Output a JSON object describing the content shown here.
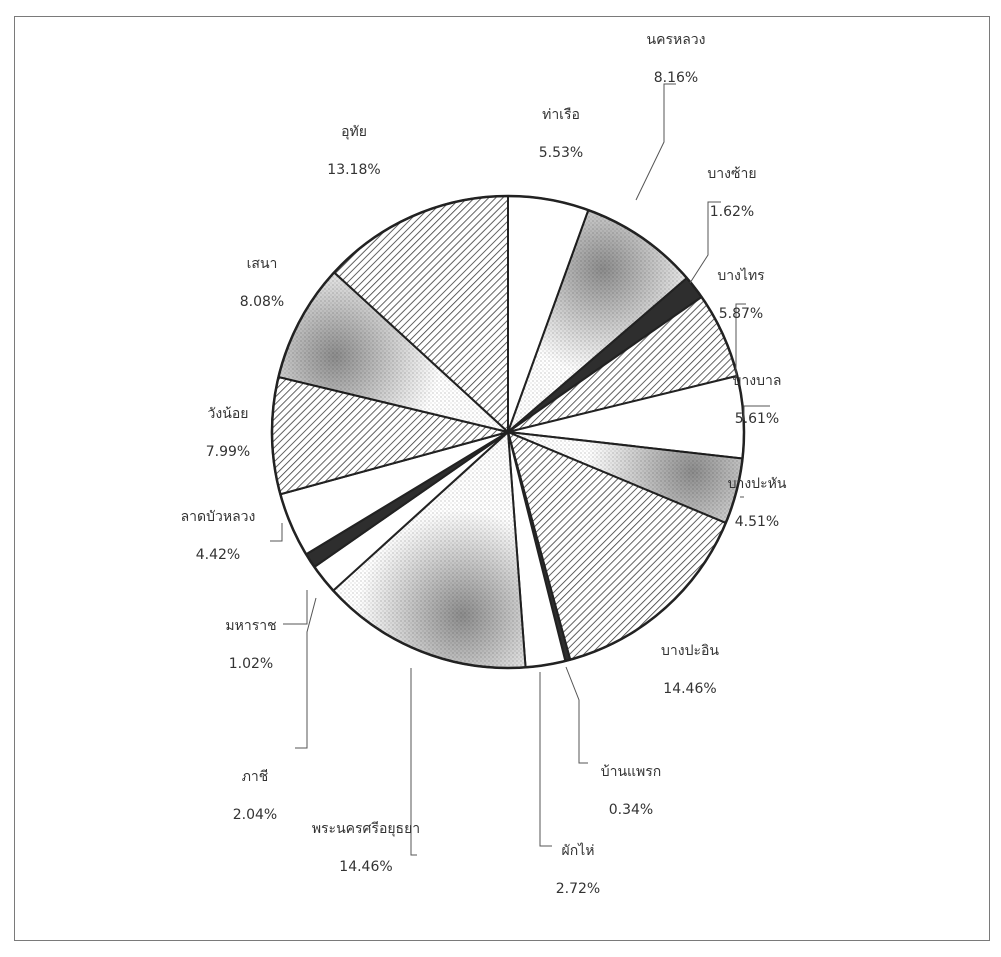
{
  "chart_data": {
    "type": "pie",
    "title": "",
    "start_angle_deg": 0,
    "direction": "clockwise",
    "legend": "none",
    "slices": [
      {
        "label": "ท่าเรือ",
        "value": 5.53,
        "value_label": "5.53%",
        "fill": "white"
      },
      {
        "label": "นครหลวง",
        "value": 8.16,
        "value_label": "8.16%",
        "fill": "speckle"
      },
      {
        "label": "บางซ้าย",
        "value": 1.62,
        "value_label": "1.62%",
        "fill": "dark"
      },
      {
        "label": "บางไทร",
        "value": 5.87,
        "value_label": "5.87%",
        "fill": "hatch"
      },
      {
        "label": "บางบาล",
        "value": 5.61,
        "value_label": "5.61%",
        "fill": "white"
      },
      {
        "label": "บางปะหัน",
        "value": 4.51,
        "value_label": "4.51%",
        "fill": "speckle"
      },
      {
        "label": "บางปะอิน",
        "value": 14.46,
        "value_label": "14.46%",
        "fill": "hatch"
      },
      {
        "label": "บ้านแพรก",
        "value": 0.34,
        "value_label": "0.34%",
        "fill": "dark"
      },
      {
        "label": "ผักไห่",
        "value": 2.72,
        "value_label": "2.72%",
        "fill": "white"
      },
      {
        "label": "พระนครศรีอยุธยา",
        "value": 14.46,
        "value_label": "14.46%",
        "fill": "speckle"
      },
      {
        "label": "ภาชี",
        "value": 2.04,
        "value_label": "2.04%",
        "fill": "white"
      },
      {
        "label": "มหาราช",
        "value": 1.02,
        "value_label": "1.02%",
        "fill": "dark"
      },
      {
        "label": "ลาดบัวหลวง",
        "value": 4.42,
        "value_label": "4.42%",
        "fill": "white"
      },
      {
        "label": "วังน้อย",
        "value": 7.99,
        "value_label": "7.99%",
        "fill": "hatch"
      },
      {
        "label": "เสนา",
        "value": 8.08,
        "value_label": "8.08%",
        "fill": "speckle"
      },
      {
        "label": "อุทัย",
        "value": 13.18,
        "value_label": "13.18%",
        "fill": "hatch"
      }
    ]
  }
}
